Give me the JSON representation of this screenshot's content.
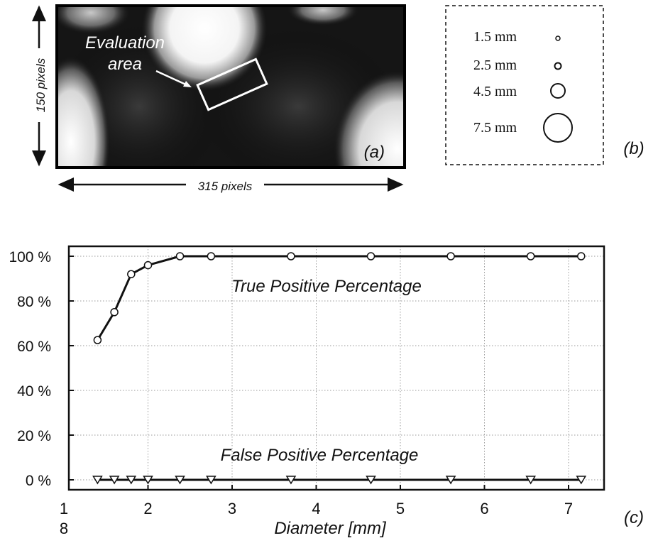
{
  "panel_a": {
    "label": "(a)",
    "annotation": [
      "Evaluation",
      "area"
    ],
    "width_label": "315 pixels",
    "height_label": "150 pixels"
  },
  "panel_b": {
    "label": "(b)",
    "legend": [
      {
        "text": "1.5 mm",
        "diameter_mm": 1.5
      },
      {
        "text": "2.5 mm",
        "diameter_mm": 2.5
      },
      {
        "text": "4.5 mm",
        "diameter_mm": 4.5
      },
      {
        "text": "7.5 mm",
        "diameter_mm": 7.5
      }
    ]
  },
  "panel_c": {
    "label": "(c)"
  },
  "chart_data": {
    "type": "line",
    "xlabel": "Diameter [mm]",
    "ylabel": "",
    "xlim": [
      1,
      7.3
    ],
    "ylim": [
      0,
      100
    ],
    "x_ticks": [
      1,
      2,
      3,
      4,
      5,
      6,
      7
    ],
    "x_tick_labels": [
      "1",
      "2",
      "3",
      "4",
      "5",
      "6",
      "7"
    ],
    "x_extra_label": "8",
    "y_ticks": [
      0,
      20,
      40,
      60,
      80,
      100
    ],
    "y_tick_labels": [
      "0 %",
      "20 %",
      "40 %",
      "60 %",
      "80 %",
      "100 %"
    ],
    "grid": true,
    "series": [
      {
        "name": "True Positive Percentage",
        "marker": "circle",
        "x": [
          1.4,
          1.6,
          1.8,
          2.0,
          2.38,
          2.75,
          3.7,
          4.65,
          5.6,
          6.55,
          7.15
        ],
        "y": [
          62.5,
          75,
          92,
          96,
          100,
          100,
          100,
          100,
          100,
          100,
          100
        ]
      },
      {
        "name": "False Positive Percentage",
        "marker": "triangle-down",
        "x": [
          1.4,
          1.6,
          1.8,
          2.0,
          2.38,
          2.75,
          3.7,
          4.65,
          5.6,
          6.55,
          7.15
        ],
        "y": [
          0,
          0,
          0,
          0,
          0,
          0,
          0,
          0,
          0,
          0,
          0
        ]
      }
    ]
  }
}
